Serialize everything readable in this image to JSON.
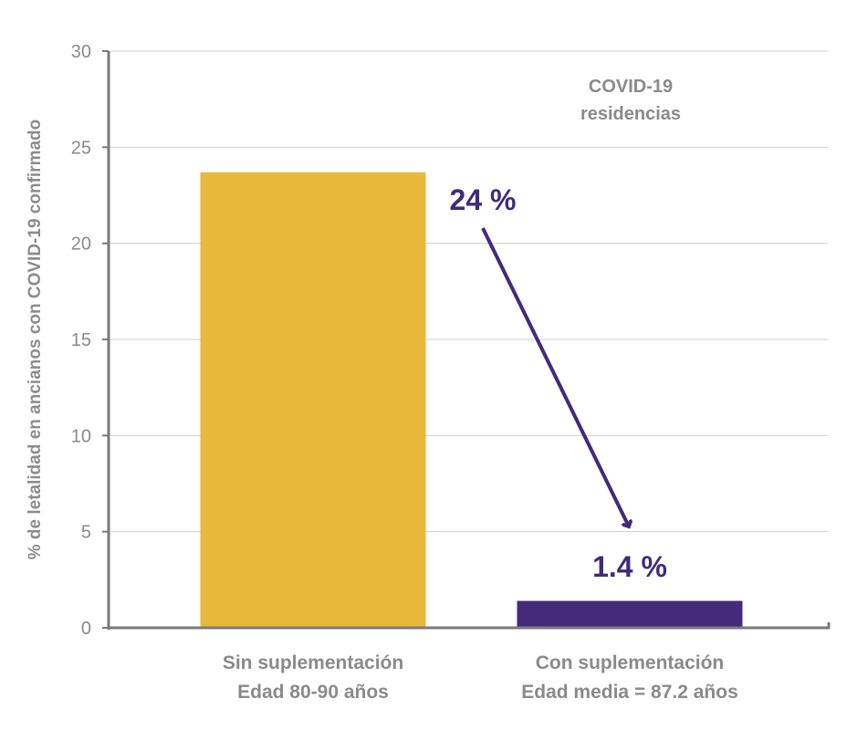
{
  "chart_data": {
    "type": "bar",
    "ylabel": "% de letalidad en ancianos con COVID-19 confirmado",
    "ylim": [
      0,
      30
    ],
    "yticks": [
      0,
      5,
      10,
      15,
      20,
      25,
      30
    ],
    "grid": true,
    "categories": [
      {
        "line1": "Sin suplementación",
        "line2": "Edad 80-90 años"
      },
      {
        "line1": "Con suplementación",
        "line2": "Edad media = 87.2 años"
      }
    ],
    "values": [
      23.7,
      1.4
    ],
    "value_labels": [
      "24 %",
      "1.4 %"
    ],
    "colors": [
      "#e8b93a",
      "#432a7a"
    ],
    "annotation": {
      "line1": "COVID-19",
      "line2": "residencias"
    },
    "arrow_color": "#432a7a"
  }
}
